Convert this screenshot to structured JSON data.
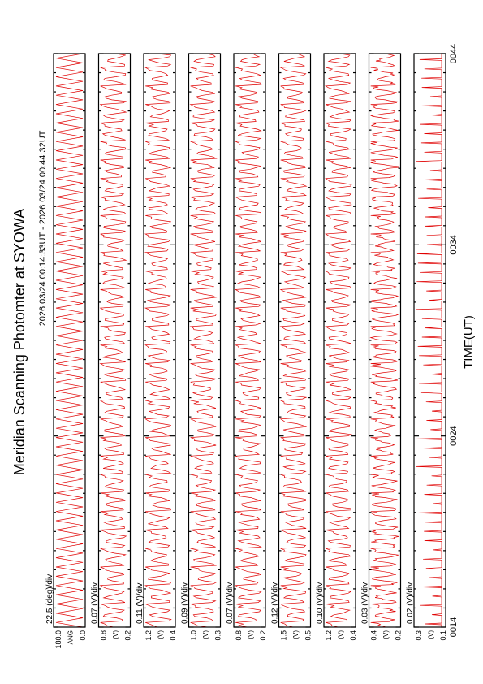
{
  "chart_data": {
    "type": "line",
    "title": "Meridian Scanning Photomter at SYOWA",
    "time_range": "2026 03/24 00:14:33UT - 2026 03/24 00:44:32UT",
    "xlabel": "TIME(UT)",
    "x_ticks": [
      "0014",
      "0024",
      "0034",
      "0044"
    ],
    "panels": [
      {
        "scale": "22.5 (deg)/div",
        "unit_label": "ANG",
        "yticks": [
          "180.0",
          "0.0"
        ],
        "ylim": [
          0,
          180
        ],
        "waveform": "angle",
        "cycles": 62
      },
      {
        "scale": "0.07 (V)/div",
        "unit_label": "(V)",
        "yticks": [
          "0.8",
          "0.2"
        ],
        "ylim": [
          0.2,
          0.8
        ],
        "waveform": "signal",
        "cycles": 62
      },
      {
        "scale": "0.11 (V)/div",
        "unit_label": "(V)",
        "yticks": [
          "1.2",
          "0.4"
        ],
        "ylim": [
          0.4,
          1.2
        ],
        "waveform": "signal",
        "cycles": 62
      },
      {
        "scale": "0.09 (V)/div",
        "unit_label": "(V)",
        "yticks": [
          "1.0",
          "0.3"
        ],
        "ylim": [
          0.3,
          1.0
        ],
        "waveform": "signal",
        "cycles": 62
      },
      {
        "scale": "0.07 (V)/div",
        "unit_label": "(V)",
        "yticks": [
          "0.8",
          "0.2"
        ],
        "ylim": [
          0.2,
          0.8
        ],
        "waveform": "signal",
        "cycles": 62
      },
      {
        "scale": "0.12 (V)/div",
        "unit_label": "(V)",
        "yticks": [
          "1.5",
          "0.5"
        ],
        "ylim": [
          0.5,
          1.5
        ],
        "waveform": "signal",
        "cycles": 62
      },
      {
        "scale": "0.10 (V)/div",
        "unit_label": "(V)",
        "yticks": [
          "1.2",
          "0.4"
        ],
        "ylim": [
          0.4,
          1.2
        ],
        "waveform": "signal",
        "cycles": 62
      },
      {
        "scale": "0.03 (V)/div",
        "unit_label": "(V)",
        "yticks": [
          "0.4",
          "0.2"
        ],
        "ylim": [
          0.2,
          0.4
        ],
        "waveform": "dense",
        "cycles": 62
      },
      {
        "scale": "0.02 (V)/div",
        "unit_label": "(V)",
        "yticks": [
          "0.3",
          "0.1"
        ],
        "ylim": [
          0.1,
          0.3
        ],
        "waveform": "spikes",
        "cycles": 62
      }
    ],
    "colors": {
      "trace": "#e00000",
      "axis": "#000000"
    },
    "grid": false
  }
}
